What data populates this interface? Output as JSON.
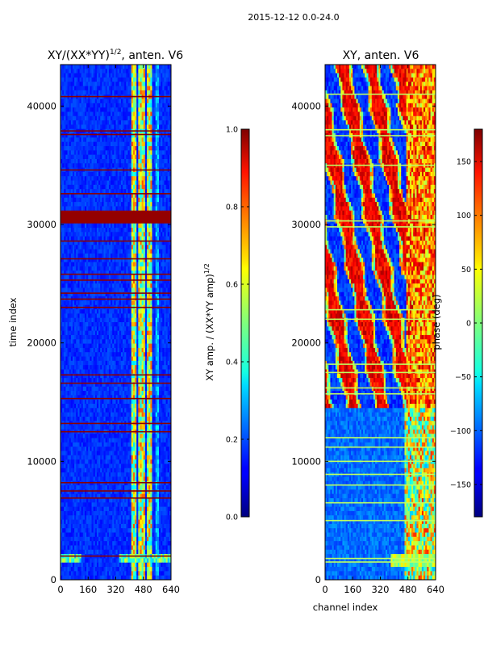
{
  "suptitle": "2015-12-12 0.0-24.0",
  "chart_data": [
    {
      "type": "heatmap",
      "title_main": "XY/(XX*YY)",
      "title_sup": "1/2",
      "title_rest": ", anten. V6",
      "xlabel": "",
      "ylabel": "time index",
      "xlim": [
        0,
        640
      ],
      "ylim": [
        0,
        43500
      ],
      "xticks": [
        0,
        160,
        320,
        480,
        640
      ],
      "yticks": [
        0,
        10000,
        20000,
        30000,
        40000
      ],
      "colormap": "jet",
      "colorbar": {
        "label_main": "XY amp. / (XX*YY amp)",
        "label_sup": "1/2",
        "range": [
          0.0,
          1.0
        ],
        "ticks": [
          "0.0",
          "0.2",
          "0.4",
          "0.6",
          "0.8",
          "1.0"
        ],
        "tick_values": [
          0.0,
          0.2,
          0.4,
          0.6,
          0.8,
          1.0
        ]
      },
      "bright_channel_bands": [
        [
          415,
          435
        ],
        [
          450,
          490
        ],
        [
          500,
          530
        ]
      ],
      "saturated_time_band": [
        30200,
        31000
      ],
      "flag_rows": [
        2000,
        6900,
        7500,
        8200,
        12500,
        13200,
        15300,
        16600,
        17300,
        23000,
        23700,
        24200,
        25300,
        25800,
        27100,
        28600,
        32600,
        34600,
        37600,
        37900,
        40800
      ]
    },
    {
      "type": "heatmap",
      "title_main": "XY, anten. V6",
      "xlabel": "channel index",
      "ylabel": "",
      "xlim": [
        0,
        640
      ],
      "ylim": [
        0,
        43500
      ],
      "xticks": [
        0,
        160,
        320,
        480,
        640
      ],
      "yticks": [
        0,
        10000,
        20000,
        30000,
        40000
      ],
      "colormap": "jet",
      "colorbar": {
        "label_main": "phase (deg)",
        "range": [
          -180,
          180
        ],
        "ticks": [
          "−150",
          "−100",
          "−50",
          "0",
          "50",
          "100",
          "150"
        ],
        "tick_values": [
          -150,
          -100,
          -50,
          0,
          50,
          100,
          150
        ]
      },
      "phase_wrap_region_time": [
        14500,
        43500
      ],
      "low_phase_region_time": [
        0,
        14500
      ],
      "flag_rows": [
        1500,
        1800,
        5000,
        6500,
        8000,
        8900,
        10000,
        11200,
        12000,
        15700,
        16200,
        17500,
        18200,
        22000,
        22800,
        29800,
        30300,
        35000,
        37500,
        38000,
        41000
      ]
    }
  ]
}
